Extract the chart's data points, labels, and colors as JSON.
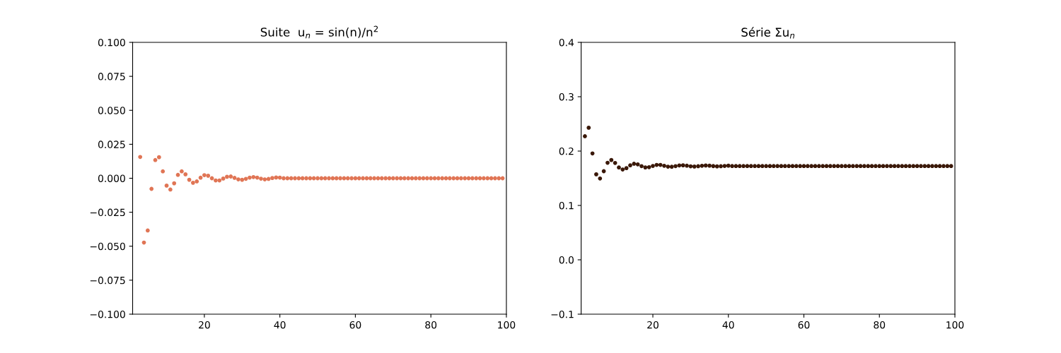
{
  "chart_data": [
    {
      "type": "scatter",
      "title": "Suite  u$_{n}$ = sin(n)/n$^{2}$",
      "marker": "circle",
      "grid": false,
      "xlim": [
        1,
        100
      ],
      "xticks": [
        20,
        40,
        60,
        80,
        100
      ],
      "ylim": [
        -0.1,
        0.1
      ],
      "yticks": [
        {
          "value": -0.1,
          "label": "−0.100"
        },
        {
          "value": -0.075,
          "label": "−0.075"
        },
        {
          "value": -0.05,
          "label": "−0.050"
        },
        {
          "value": -0.025,
          "label": "−0.025"
        },
        {
          "value": 0,
          "label": "0.000"
        },
        {
          "value": 0.025,
          "label": "0.025"
        },
        {
          "value": 0.05,
          "label": "0.050"
        },
        {
          "value": 0.075,
          "label": "0.075"
        },
        {
          "value": 0.1,
          "label": "0.100"
        }
      ],
      "series": [
        {
          "color": "#e07555",
          "x": [
            3,
            4,
            5,
            6,
            7,
            8,
            9,
            10,
            11,
            12,
            13,
            14,
            15,
            16,
            17,
            18,
            19,
            20,
            21,
            22,
            23,
            24,
            25,
            26,
            27,
            28,
            29,
            30,
            31,
            32,
            33,
            34,
            35,
            36,
            37,
            38,
            39,
            40,
            41,
            42,
            43,
            44,
            45,
            46,
            47,
            48,
            49,
            50,
            51,
            52,
            53,
            54,
            55,
            56,
            57,
            58,
            59,
            60,
            61,
            62,
            63,
            64,
            65,
            66,
            67,
            68,
            69,
            70,
            71,
            72,
            73,
            74,
            75,
            76,
            77,
            78,
            79,
            80,
            81,
            82,
            83,
            84,
            85,
            86,
            87,
            88,
            89,
            90,
            91,
            92,
            93,
            94,
            95,
            96,
            97,
            98,
            99
          ],
          "values": [
            0.0157,
            -0.0473,
            -0.0384,
            -0.0078,
            0.0134,
            0.0155,
            0.0051,
            -0.0054,
            -0.0083,
            -0.0037,
            0.0025,
            0.0051,
            0.0029,
            -0.0011,
            -0.0033,
            -0.0023,
            0.0004,
            0.0023,
            0.0019,
            0.0,
            -0.0016,
            -0.0016,
            -0.0002,
            0.0011,
            0.0013,
            0.0003,
            -0.0008,
            -0.0011,
            -0.0004,
            0.0005,
            0.0009,
            0.0005,
            -0.0003,
            -0.0008,
            -0.0005,
            0.0002,
            0.0006,
            0.0005,
            0,
            0,
            0,
            0,
            0,
            0,
            0,
            0,
            0,
            0,
            0,
            0,
            0,
            0,
            0,
            0,
            0,
            0,
            0,
            0,
            0,
            0,
            0,
            0,
            0,
            0,
            0,
            0,
            0,
            0,
            0,
            0,
            0,
            0,
            0,
            0,
            0,
            0,
            0,
            0,
            0,
            0,
            0,
            0,
            0,
            0,
            0,
            0,
            0,
            0,
            0,
            0,
            0,
            0,
            0,
            0,
            0,
            0,
            0
          ]
        }
      ]
    },
    {
      "type": "scatter",
      "title": "Série Σu$_{n}$",
      "marker": "circle",
      "grid": false,
      "xlim": [
        1,
        100
      ],
      "xticks": [
        20,
        40,
        60,
        80,
        100
      ],
      "ylim": [
        -0.1,
        0.4
      ],
      "yticks": [
        {
          "value": -0.1,
          "label": "−0.1"
        },
        {
          "value": 0,
          "label": "0.0"
        },
        {
          "value": 0.1,
          "label": "0.1"
        },
        {
          "value": 0.2,
          "label": "0.2"
        },
        {
          "value": 0.3,
          "label": "0.3"
        },
        {
          "value": 0.4,
          "label": "0.4"
        }
      ],
      "series": [
        {
          "color": "#3a1808",
          "x": [
            2,
            3,
            4,
            5,
            6,
            7,
            8,
            9,
            10,
            11,
            12,
            13,
            14,
            15,
            16,
            17,
            18,
            19,
            20,
            21,
            22,
            23,
            24,
            25,
            26,
            27,
            28,
            29,
            30,
            31,
            32,
            33,
            34,
            35,
            36,
            37,
            38,
            39,
            40,
            41,
            42,
            43,
            44,
            45,
            46,
            47,
            48,
            49,
            50,
            51,
            52,
            53,
            54,
            55,
            56,
            57,
            58,
            59,
            60,
            61,
            62,
            63,
            64,
            65,
            66,
            67,
            68,
            69,
            70,
            71,
            72,
            73,
            74,
            75,
            76,
            77,
            78,
            79,
            80,
            81,
            82,
            83,
            84,
            85,
            86,
            87,
            88,
            89,
            90,
            91,
            92,
            93,
            94,
            95,
            96,
            97,
            98,
            99
          ],
          "values": [
            0.2273,
            0.243,
            0.1957,
            0.1573,
            0.1496,
            0.163,
            0.1785,
            0.1836,
            0.1782,
            0.1699,
            0.1662,
            0.1687,
            0.1738,
            0.1767,
            0.1756,
            0.1723,
            0.17,
            0.1704,
            0.1727,
            0.1746,
            0.1746,
            0.173,
            0.1714,
            0.1712,
            0.1723,
            0.1736,
            0.1739,
            0.1731,
            0.172,
            0.1716,
            0.1721,
            0.173,
            0.1735,
            0.1732,
            0.1724,
            0.1719,
            0.1721,
            0.1727,
            0.1732,
            0.1725,
            0.1725,
            0.1725,
            0.1725,
            0.1725,
            0.1725,
            0.1725,
            0.1725,
            0.1725,
            0.1725,
            0.1725,
            0.1725,
            0.1725,
            0.1725,
            0.1725,
            0.1725,
            0.1725,
            0.1725,
            0.1725,
            0.1725,
            0.1725,
            0.1725,
            0.1725,
            0.1725,
            0.1725,
            0.1725,
            0.1725,
            0.1725,
            0.1725,
            0.1725,
            0.1725,
            0.1725,
            0.1725,
            0.1725,
            0.1725,
            0.1725,
            0.1725,
            0.1725,
            0.1725,
            0.1725,
            0.1725,
            0.1725,
            0.1725,
            0.1725,
            0.1725,
            0.1725,
            0.1725,
            0.1725,
            0.1725,
            0.1725,
            0.1725,
            0.1725,
            0.1725,
            0.1725,
            0.1725,
            0.1725,
            0.1725,
            0.1725,
            0.1725
          ]
        }
      ]
    }
  ]
}
